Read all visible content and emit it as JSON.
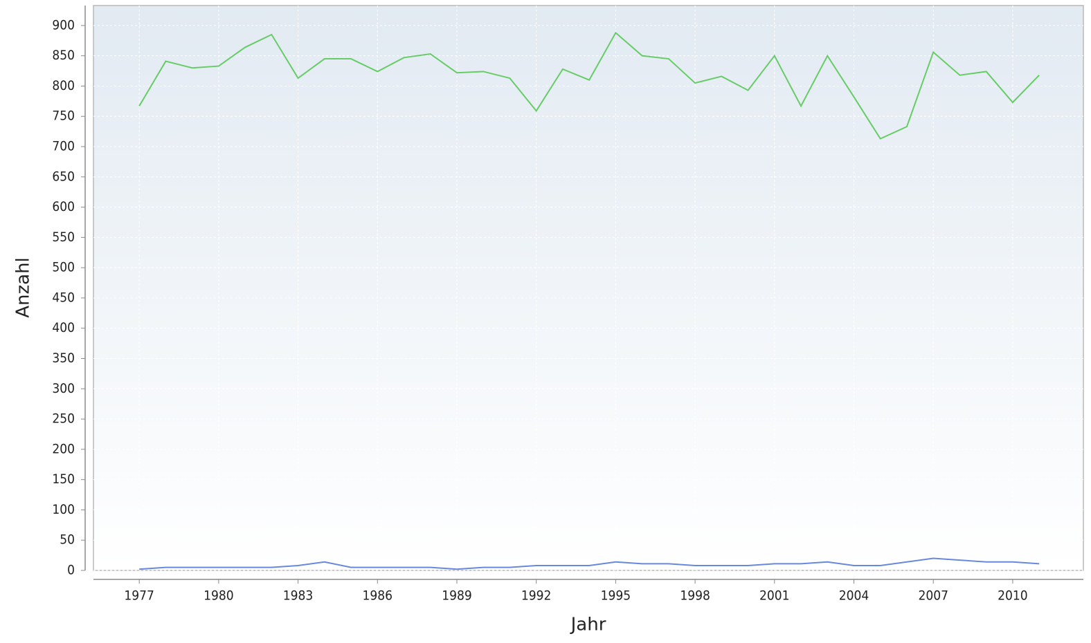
{
  "chart_data": {
    "type": "line",
    "x_label": "Jahr",
    "y_label": "Anzahl",
    "x": [
      1977,
      1978,
      1979,
      1980,
      1981,
      1982,
      1983,
      1984,
      1985,
      1986,
      1987,
      1988,
      1989,
      1990,
      1991,
      1992,
      1993,
      1994,
      1995,
      1996,
      1997,
      1998,
      1999,
      2000,
      2001,
      2002,
      2003,
      2004,
      2005,
      2006,
      2007,
      2008,
      2009,
      2010,
      2011
    ],
    "series": [
      {
        "color": "#66cc66",
        "values": [
          767,
          841,
          830,
          833,
          864,
          885,
          813,
          845,
          845,
          824,
          847,
          853,
          822,
          824,
          813,
          759,
          828,
          810,
          888,
          850,
          845,
          805,
          816,
          793,
          850,
          767,
          850,
          782,
          713,
          733,
          856,
          818,
          824,
          773,
          818
        ]
      },
      {
        "color": "#6688dd",
        "values": [
          2,
          5,
          5,
          5,
          5,
          5,
          8,
          14,
          5,
          5,
          5,
          5,
          2,
          5,
          5,
          8,
          8,
          8,
          14,
          11,
          11,
          8,
          8,
          8,
          11,
          11,
          14,
          8,
          8,
          14,
          20,
          17,
          14,
          14,
          11
        ]
      }
    ],
    "xlim": [
      1975.27,
      2012.67
    ],
    "ylim": [
      0,
      933
    ],
    "xticks": [
      1977,
      1980,
      1983,
      1986,
      1989,
      1992,
      1995,
      1998,
      2001,
      2004,
      2007,
      2010
    ],
    "yticks": [
      0,
      50,
      100,
      150,
      200,
      250,
      300,
      350,
      400,
      450,
      500,
      550,
      600,
      650,
      700,
      750,
      800,
      850,
      900
    ],
    "grid": true
  }
}
